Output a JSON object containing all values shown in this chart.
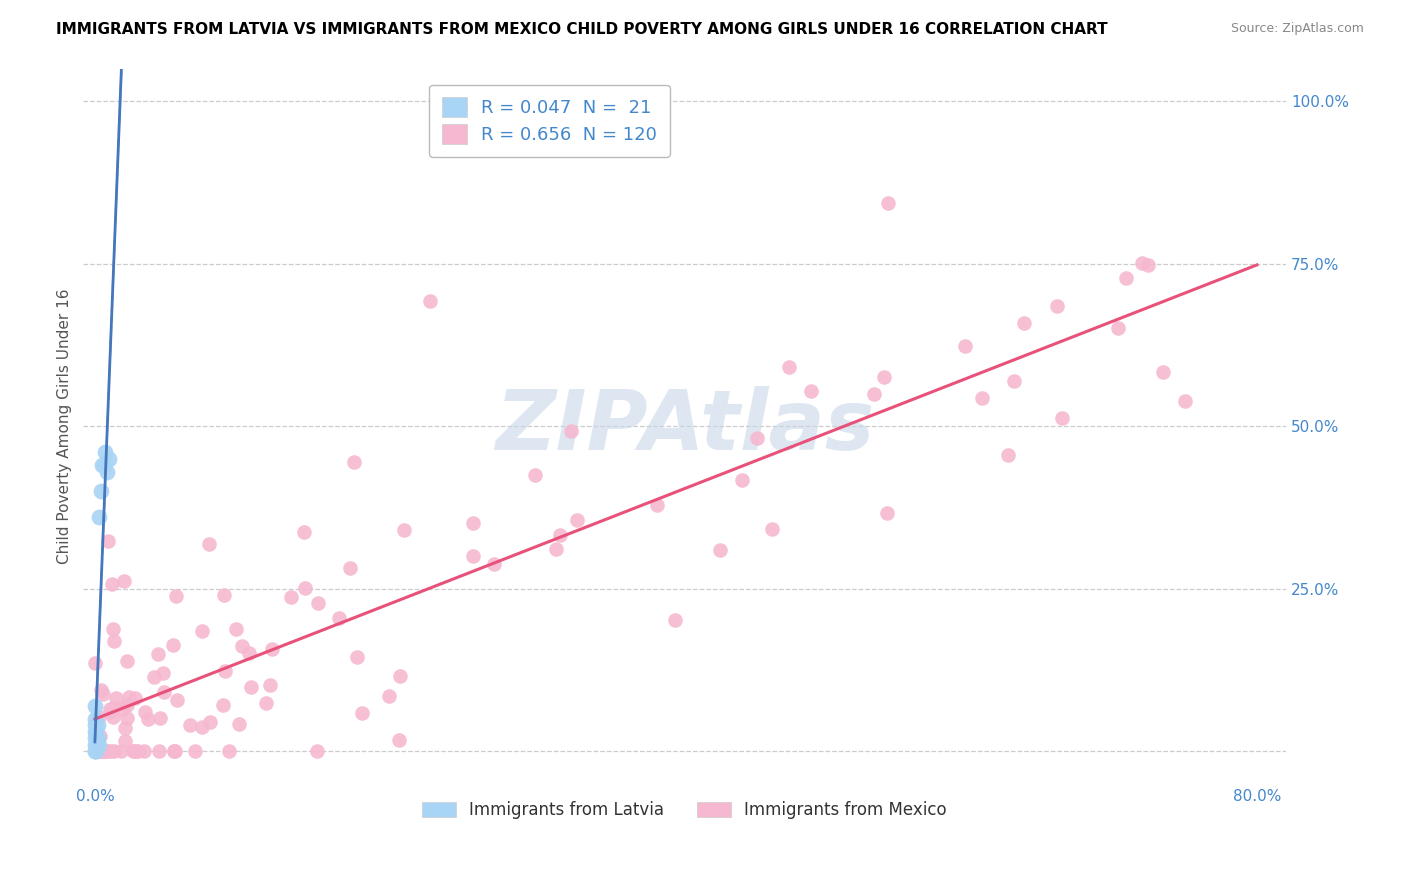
{
  "title": "IMMIGRANTS FROM LATVIA VS IMMIGRANTS FROM MEXICO CHILD POVERTY AMONG GIRLS UNDER 16 CORRELATION CHART",
  "source": "Source: ZipAtlas.com",
  "ylabel": "Child Poverty Among Girls Under 16",
  "xlim": [
    -0.008,
    0.82
  ],
  "ylim": [
    -0.05,
    1.05
  ],
  "xticks": [
    0.0,
    0.1,
    0.2,
    0.3,
    0.4,
    0.5,
    0.6,
    0.7,
    0.8
  ],
  "xticklabels": [
    "0.0%",
    "",
    "",
    "",
    "",
    "",
    "",
    "",
    "80.0%"
  ],
  "yticks": [
    0.0,
    0.25,
    0.5,
    0.75,
    1.0
  ],
  "yticklabels": [
    "",
    "25.0%",
    "50.0%",
    "75.0%",
    "100.0%"
  ],
  "latvia_color": "#a8d4f5",
  "mexico_color": "#f5b8d0",
  "trend_mexico_color": "#e8527a",
  "trend_latvia_color": "#4477bb",
  "trend_dashed_color": "#aaaaaa",
  "latvia_R": 0.047,
  "latvia_N": 21,
  "mexico_R": 0.656,
  "mexico_N": 120,
  "legend_label_latvia": "Immigrants from Latvia",
  "legend_label_mexico": "Immigrants from Mexico",
  "watermark": "ZIPAtlas",
  "grid_color": "#cccccc",
  "tick_label_color": "#4488cc",
  "title_color": "#000000",
  "source_color": "#888888",
  "ylabel_color": "#555555"
}
